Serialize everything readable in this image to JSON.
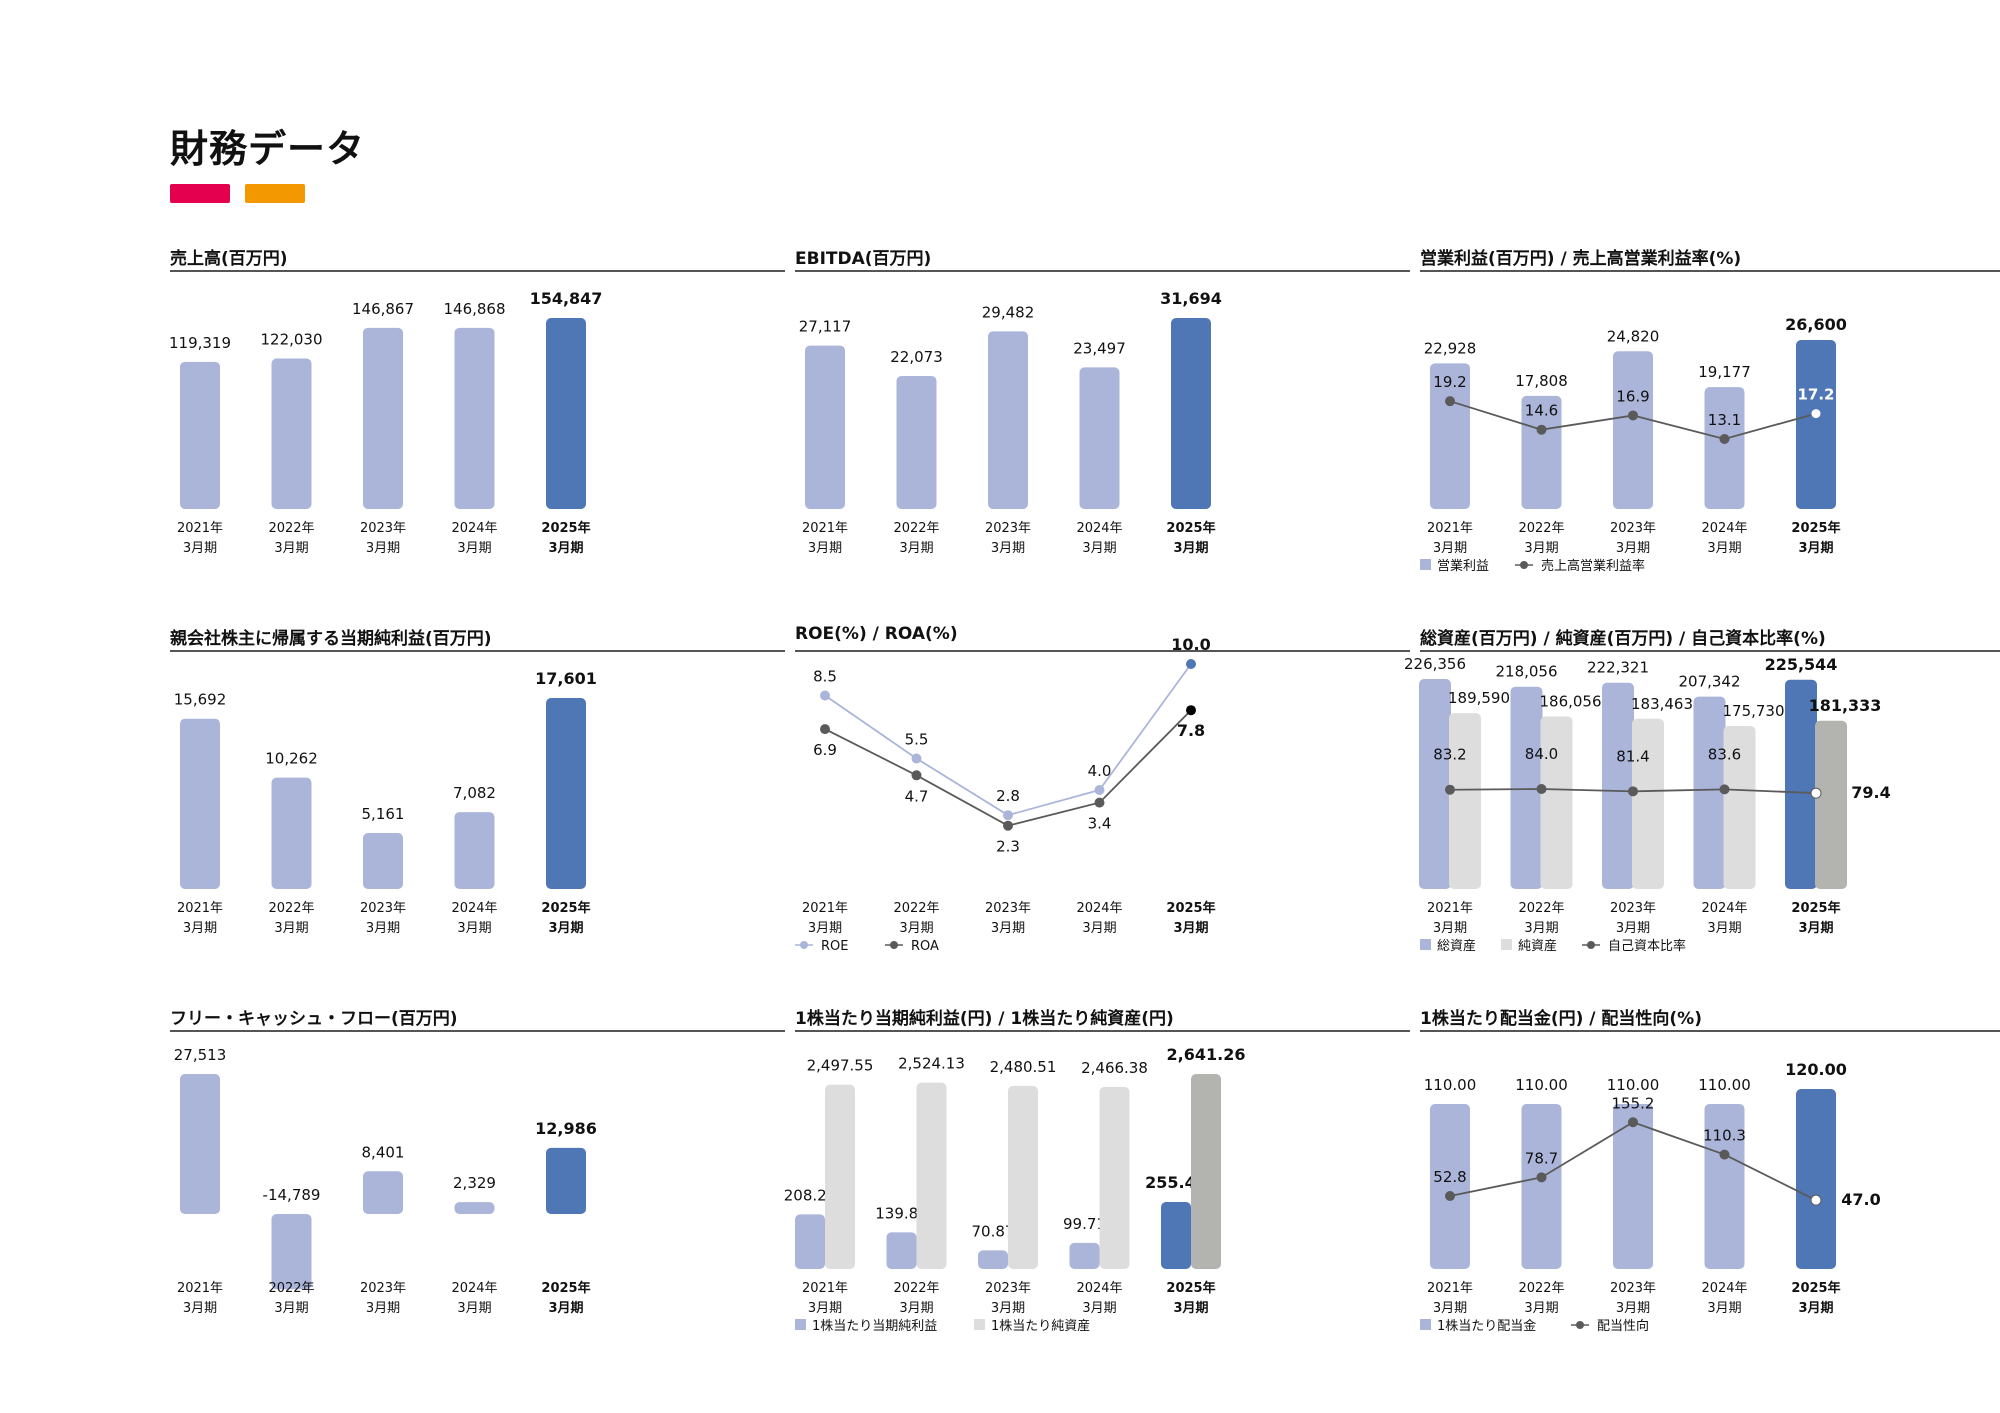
{
  "page": {
    "title": "財務データ",
    "accent_colors": [
      "#e5004f",
      "#f39800"
    ]
  },
  "colors": {
    "bar_light": "#aab5d9",
    "bar_highlight": "#4f76b5",
    "bar_gray_light": "#dddddd",
    "bar_gray_highlight": "#b3b3b0",
    "line_dark": "#5a5a5a",
    "line_light": "#aab5d9",
    "dot_dark_final": "#000000",
    "dot_light_final": "#4f76b5"
  },
  "panels": {
    "sales": {
      "title": "売上高(百万円)"
    },
    "ebitda": {
      "title": "EBITDA(百万円)"
    },
    "op": {
      "title": "営業利益(百万円) / 売上高営業利益率(%)"
    },
    "ni": {
      "title": "親会社株主に帰属する当期純利益(百万円)"
    },
    "roe": {
      "title": "ROE(%) / ROA(%)"
    },
    "assets": {
      "title": "総資産(百万円) / 純資産(百万円) / 自己資本比率(%)"
    },
    "fcf": {
      "title": "フリー・キャッシュ・フロー(百万円)"
    },
    "eps": {
      "title": "1株当たり当期純利益(円) / 1株当たり純資産(円)"
    },
    "div": {
      "title": "1株当たり配当金(円) / 配当性向(%)"
    }
  },
  "chart_data": [
    {
      "id": "sales",
      "type": "bar",
      "title": "売上高(百万円)",
      "categories": [
        "2021年\n3月期",
        "2022年\n3月期",
        "2023年\n3月期",
        "2024年\n3月期",
        "2025年\n3月期"
      ],
      "series": [
        {
          "values": [
            119319,
            122030,
            146867,
            146868,
            154847
          ],
          "labels": [
            "119,319",
            "122,030",
            "146,867",
            "146,868",
            "154,847"
          ]
        }
      ],
      "ylim": [
        0,
        154847
      ]
    },
    {
      "id": "ebitda",
      "type": "bar",
      "title": "EBITDA(百万円)",
      "categories": [
        "2021年\n3月期",
        "2022年\n3月期",
        "2023年\n3月期",
        "2024年\n3月期",
        "2025年\n3月期"
      ],
      "series": [
        {
          "values": [
            27117,
            22073,
            29482,
            23497,
            31694
          ],
          "labels": [
            "27,117",
            "22,073",
            "29,482",
            "23,497",
            "31,694"
          ]
        }
      ],
      "ylim": [
        0,
        31694
      ]
    },
    {
      "id": "op",
      "type": "bar",
      "title": "営業利益(百万円) / 売上高営業利益率(%)",
      "categories": [
        "2021年\n3月期",
        "2022年\n3月期",
        "2023年\n3月期",
        "2024年\n3月期",
        "2025年\n3月期"
      ],
      "series": [
        {
          "name": "営業利益",
          "kind": "bar",
          "values": [
            22928,
            17808,
            24820,
            19177,
            26600
          ],
          "labels": [
            "22,928",
            "17,808",
            "24,820",
            "19,177",
            "26,600"
          ]
        },
        {
          "name": "売上高営業利益率",
          "kind": "line",
          "values": [
            19.2,
            14.6,
            16.9,
            13.1,
            17.2
          ],
          "labels": [
            "19.2",
            "14.6",
            "16.9",
            "13.1",
            "17.2"
          ]
        }
      ],
      "legend": [
        "営業利益",
        "売上高営業利益率"
      ],
      "legend_position": "bottom"
    },
    {
      "id": "ni",
      "type": "bar",
      "title": "親会社株主に帰属する当期純利益(百万円)",
      "categories": [
        "2021年\n3月期",
        "2022年\n3月期",
        "2023年\n3月期",
        "2024年\n3月期",
        "2025年\n3月期"
      ],
      "series": [
        {
          "values": [
            15692,
            10262,
            5161,
            7082,
            17601
          ],
          "labels": [
            "15,692",
            "10,262",
            "5,161",
            "7,082",
            "17,601"
          ]
        }
      ],
      "ylim": [
        0,
        17601
      ]
    },
    {
      "id": "roe",
      "type": "line",
      "title": "ROE(%) / ROA(%)",
      "categories": [
        "2021年\n3月期",
        "2022年\n3月期",
        "2023年\n3月期",
        "2024年\n3月期",
        "2025年\n3月期"
      ],
      "series": [
        {
          "name": "ROE",
          "values": [
            8.5,
            5.5,
            2.8,
            4.0,
            10.0
          ],
          "labels": [
            "8.5",
            "5.5",
            "2.8",
            "4.0",
            "10.0"
          ]
        },
        {
          "name": "ROA",
          "values": [
            6.9,
            4.7,
            2.3,
            3.4,
            7.8
          ],
          "labels": [
            "6.9",
            "4.7",
            "2.3",
            "3.4",
            "7.8"
          ]
        }
      ],
      "legend": [
        "ROE",
        "ROA"
      ],
      "legend_position": "bottom"
    },
    {
      "id": "assets",
      "type": "bar",
      "title": "総資産(百万円) / 純資産(百万円) / 自己資本比率(%)",
      "categories": [
        "2021年\n3月期",
        "2022年\n3月期",
        "2023年\n3月期",
        "2024年\n3月期",
        "2025年\n3月期"
      ],
      "series": [
        {
          "name": "総資産",
          "kind": "bar",
          "values": [
            226356,
            218056,
            222321,
            207342,
            225544
          ],
          "labels": [
            "226,356",
            "218,056",
            "222,321",
            "207,342",
            "225,544"
          ]
        },
        {
          "name": "純資産",
          "kind": "bar",
          "values": [
            189590,
            186056,
            183463,
            175730,
            181333
          ],
          "labels": [
            "189,590",
            "186,056",
            "183,463",
            "175,730",
            "181,333"
          ]
        },
        {
          "name": "自己資本比率",
          "kind": "line",
          "values": [
            83.2,
            84.0,
            81.4,
            83.6,
            79.4
          ],
          "labels": [
            "83.2",
            "84.0",
            "81.4",
            "83.6",
            "79.4"
          ]
        }
      ],
      "legend": [
        "総資産",
        "純資産",
        "自己資本比率"
      ],
      "legend_position": "bottom"
    },
    {
      "id": "fcf",
      "type": "bar",
      "title": "フリー・キャッシュ・フロー(百万円)",
      "categories": [
        "2021年\n3月期",
        "2022年\n3月期",
        "2023年\n3月期",
        "2024年\n3月期",
        "2025年\n3月期"
      ],
      "series": [
        {
          "values": [
            27513,
            -14789,
            8401,
            2329,
            12986
          ],
          "labels": [
            "27,513",
            "-14,789",
            "8,401",
            "2,329",
            "12,986"
          ]
        }
      ]
    },
    {
      "id": "eps",
      "type": "bar",
      "title": "1株当たり当期純利益(円) / 1株当たり純資産(円)",
      "categories": [
        "2021年\n3月期",
        "2022年\n3月期",
        "2023年\n3月期",
        "2024年\n3月期",
        "2025年\n3月期"
      ],
      "series": [
        {
          "name": "1株当たり当期純利益",
          "kind": "bar",
          "values": [
            208.24,
            139.85,
            70.87,
            99.71,
            255.43
          ],
          "labels": [
            "208.24",
            "139.85",
            "70.87",
            "99.71",
            "255.43"
          ]
        },
        {
          "name": "1株当たり純資産",
          "kind": "bar",
          "values": [
            2497.55,
            2524.13,
            2480.51,
            2466.38,
            2641.26
          ],
          "labels": [
            "2,497.55",
            "2,524.13",
            "2,480.51",
            "2,466.38",
            "2,641.26"
          ]
        }
      ],
      "legend": [
        "1株当たり当期純利益",
        "1株当たり純資産"
      ],
      "legend_position": "bottom"
    },
    {
      "id": "div",
      "type": "bar",
      "title": "1株当たり配当金(円) / 配当性向(%)",
      "categories": [
        "2021年\n3月期",
        "2022年\n3月期",
        "2023年\n3月期",
        "2024年\n3月期",
        "2025年\n3月期"
      ],
      "series": [
        {
          "name": "1株当たり配当金",
          "kind": "bar",
          "values": [
            110.0,
            110.0,
            110.0,
            110.0,
            120.0
          ],
          "labels": [
            "110.00",
            "110.00",
            "110.00",
            "110.00",
            "120.00"
          ]
        },
        {
          "name": "配当性向",
          "kind": "line",
          "values": [
            52.8,
            78.7,
            155.2,
            110.3,
            47.0
          ],
          "labels": [
            "52.8",
            "78.7",
            "155.2",
            "110.3",
            "47.0"
          ]
        }
      ],
      "legend": [
        "1株当たり配当金",
        "配当性向"
      ],
      "legend_position": "bottom"
    }
  ]
}
